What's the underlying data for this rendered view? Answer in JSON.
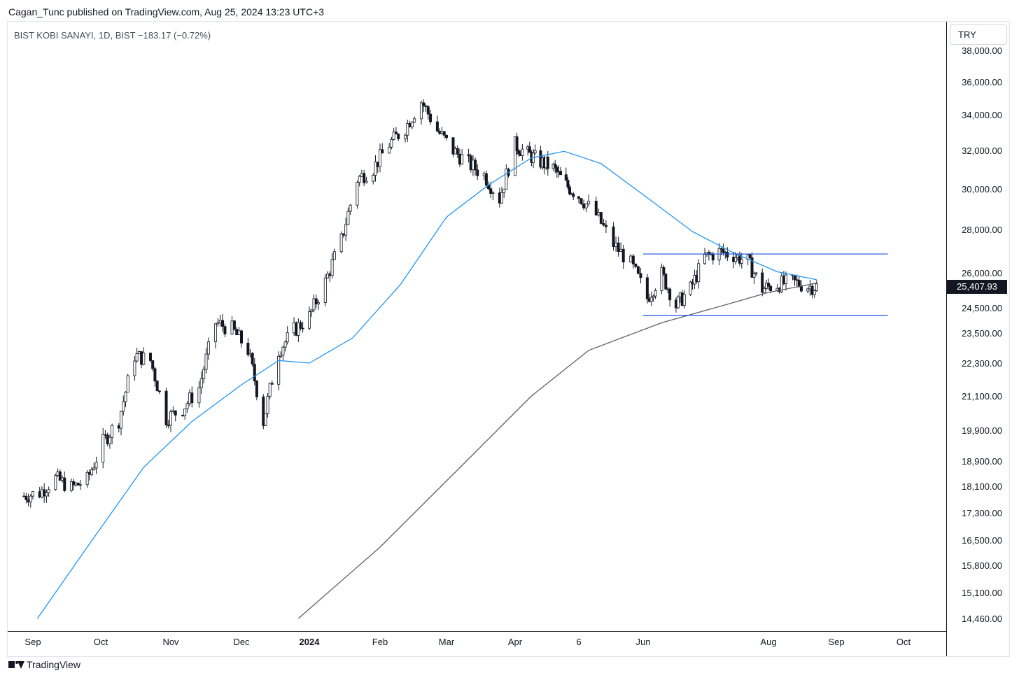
{
  "header": {
    "text": "Cagan_Tunc published on TradingView.com, Aug 25, 2024 13:23 UTC+3"
  },
  "symbol": {
    "text": "BIST KOBI SANAYI, 1D, BIST  −183.17 (−0.72%)"
  },
  "currency": {
    "label": "TRY"
  },
  "footer": {
    "brand": "TradingView",
    "logo_icon": "tradingview-logo-icon"
  },
  "colors": {
    "up": "#ffffff",
    "down": "#131722",
    "ma50": "#2196f3",
    "ma200": "#5d606b",
    "range": "#1e53e5"
  },
  "chart_data": {
    "type": "candlestick",
    "y_axis": {
      "tick_labels": [
        "38,000.00",
        "36,000.00",
        "34,000.00",
        "32,000.00",
        "30,000.00",
        "28,000.00",
        "26,000.00",
        "24,500.00",
        "23,500.00",
        "22,300.00",
        "21,100.00",
        "19,900.00",
        "18,900.00",
        "18,100.00",
        "17,300.00",
        "16,500.00",
        "15,800.00",
        "15,100.00",
        "14,460.00"
      ],
      "ticks": [
        38000,
        36000,
        34000,
        32000,
        30000,
        28000,
        26000,
        24500,
        23500,
        22300,
        21100,
        19900,
        18900,
        18100,
        17300,
        16500,
        15800,
        15100,
        14460
      ],
      "scale": "log"
    },
    "x_axis": {
      "tick_labels": [
        "Sep",
        "Oct",
        "Nov",
        "Dec",
        "2024",
        "Feb",
        "Mar",
        "Apr",
        "6",
        "Jun",
        "Aug",
        "Sep",
        "Oct"
      ],
      "bold": [
        "2024"
      ],
      "ticks": [
        "2023-09-01",
        "2023-10-01",
        "2023-11-01",
        "2023-12-01",
        "2024-01-01",
        "2024-02-01",
        "2024-03-01",
        "2024-04-01",
        "2024-05-06",
        "2024-06-01",
        "2024-08-01",
        "2024-09-01",
        "2024-10-01"
      ]
    },
    "last_price": {
      "value": 25407.93,
      "label": "25,407.93"
    },
    "closes": [
      {
        "d": "2023-08-28",
        "c": 17800
      },
      {
        "d": "2023-09-04",
        "c": 17900
      },
      {
        "d": "2023-09-11",
        "c": 18350
      },
      {
        "d": "2023-09-18",
        "c": 18050
      },
      {
        "d": "2023-09-25",
        "c": 18300
      },
      {
        "d": "2023-10-02",
        "c": 19500
      },
      {
        "d": "2023-10-09",
        "c": 20250
      },
      {
        "d": "2023-10-16",
        "c": 22600
      },
      {
        "d": "2023-10-23",
        "c": 22400
      },
      {
        "d": "2023-10-30",
        "c": 20300
      },
      {
        "d": "2023-11-06",
        "c": 20650
      },
      {
        "d": "2023-11-13",
        "c": 21400
      },
      {
        "d": "2023-11-20",
        "c": 23900
      },
      {
        "d": "2023-11-27",
        "c": 23650
      },
      {
        "d": "2023-12-04",
        "c": 22800
      },
      {
        "d": "2023-12-11",
        "c": 20200
      },
      {
        "d": "2023-12-18",
        "c": 22800
      },
      {
        "d": "2023-12-25",
        "c": 23600
      },
      {
        "d": "2024-01-01",
        "c": 24150
      },
      {
        "d": "2024-01-08",
        "c": 25600
      },
      {
        "d": "2024-01-15",
        "c": 27500
      },
      {
        "d": "2024-01-22",
        "c": 30500
      },
      {
        "d": "2024-01-29",
        "c": 31050
      },
      {
        "d": "2024-02-05",
        "c": 32350
      },
      {
        "d": "2024-02-12",
        "c": 33250
      },
      {
        "d": "2024-02-19",
        "c": 34800
      },
      {
        "d": "2024-02-26",
        "c": 33100
      },
      {
        "d": "2024-03-04",
        "c": 32000
      },
      {
        "d": "2024-03-11",
        "c": 31300
      },
      {
        "d": "2024-03-18",
        "c": 30700
      },
      {
        "d": "2024-03-25",
        "c": 29500
      },
      {
        "d": "2024-04-01",
        "c": 32300
      },
      {
        "d": "2024-04-08",
        "c": 31800
      },
      {
        "d": "2024-04-15",
        "c": 31400
      },
      {
        "d": "2024-04-22",
        "c": 31050
      },
      {
        "d": "2024-04-29",
        "c": 30200
      },
      {
        "d": "2024-05-06",
        "c": 29650
      },
      {
        "d": "2024-05-13",
        "c": 28700
      },
      {
        "d": "2024-05-20",
        "c": 27300
      },
      {
        "d": "2024-05-27",
        "c": 26400
      },
      {
        "d": "2024-06-03",
        "c": 24900
      },
      {
        "d": "2024-06-10",
        "c": 25950
      },
      {
        "d": "2024-06-17",
        "c": 24600
      },
      {
        "d": "2024-06-24",
        "c": 25300
      },
      {
        "d": "2024-07-01",
        "c": 26700
      },
      {
        "d": "2024-07-08",
        "c": 26950
      },
      {
        "d": "2024-07-15",
        "c": 26800
      },
      {
        "d": "2024-07-22",
        "c": 26500
      },
      {
        "d": "2024-07-29",
        "c": 25300
      },
      {
        "d": "2024-08-05",
        "c": 25500
      },
      {
        "d": "2024-08-12",
        "c": 25600
      },
      {
        "d": "2024-08-19",
        "c": 25408
      }
    ],
    "series": [
      {
        "name": "",
        "kind": "moving-average-short",
        "points": [
          {
            "d": "2023-09-03",
            "v": 14460
          },
          {
            "d": "2023-09-25",
            "v": 16300
          },
          {
            "d": "2023-10-20",
            "v": 18700
          },
          {
            "d": "2023-11-10",
            "v": 20200
          },
          {
            "d": "2023-12-01",
            "v": 21500
          },
          {
            "d": "2023-12-18",
            "v": 22400
          },
          {
            "d": "2024-01-01",
            "v": 22300
          },
          {
            "d": "2024-01-20",
            "v": 23300
          },
          {
            "d": "2024-02-10",
            "v": 25500
          },
          {
            "d": "2024-03-01",
            "v": 28600
          },
          {
            "d": "2024-03-20",
            "v": 30200
          },
          {
            "d": "2024-04-10",
            "v": 31600
          },
          {
            "d": "2024-04-28",
            "v": 31950
          },
          {
            "d": "2024-05-15",
            "v": 31300
          },
          {
            "d": "2024-06-05",
            "v": 29400
          },
          {
            "d": "2024-06-25",
            "v": 27900
          },
          {
            "d": "2024-07-15",
            "v": 26900
          },
          {
            "d": "2024-08-05",
            "v": 26050
          },
          {
            "d": "2024-08-23",
            "v": 25700
          }
        ]
      },
      {
        "name": "",
        "kind": "moving-average-long",
        "points": [
          {
            "d": "2023-12-27",
            "v": 14460
          },
          {
            "d": "2024-02-01",
            "v": 16300
          },
          {
            "d": "2024-03-10",
            "v": 18900
          },
          {
            "d": "2024-04-10",
            "v": 21100
          },
          {
            "d": "2024-05-10",
            "v": 22800
          },
          {
            "d": "2024-06-10",
            "v": 23900
          },
          {
            "d": "2024-07-10",
            "v": 24600
          },
          {
            "d": "2024-08-01",
            "v": 25150
          },
          {
            "d": "2024-08-23",
            "v": 25550
          }
        ]
      }
    ],
    "annotations": [
      {
        "type": "horizontal-segment",
        "value": 26850,
        "from": "2024-06-01",
        "to": "2024-09-24"
      },
      {
        "type": "horizontal-segment",
        "value": 24200,
        "from": "2024-06-01",
        "to": "2024-09-24"
      }
    ],
    "grid": false
  }
}
